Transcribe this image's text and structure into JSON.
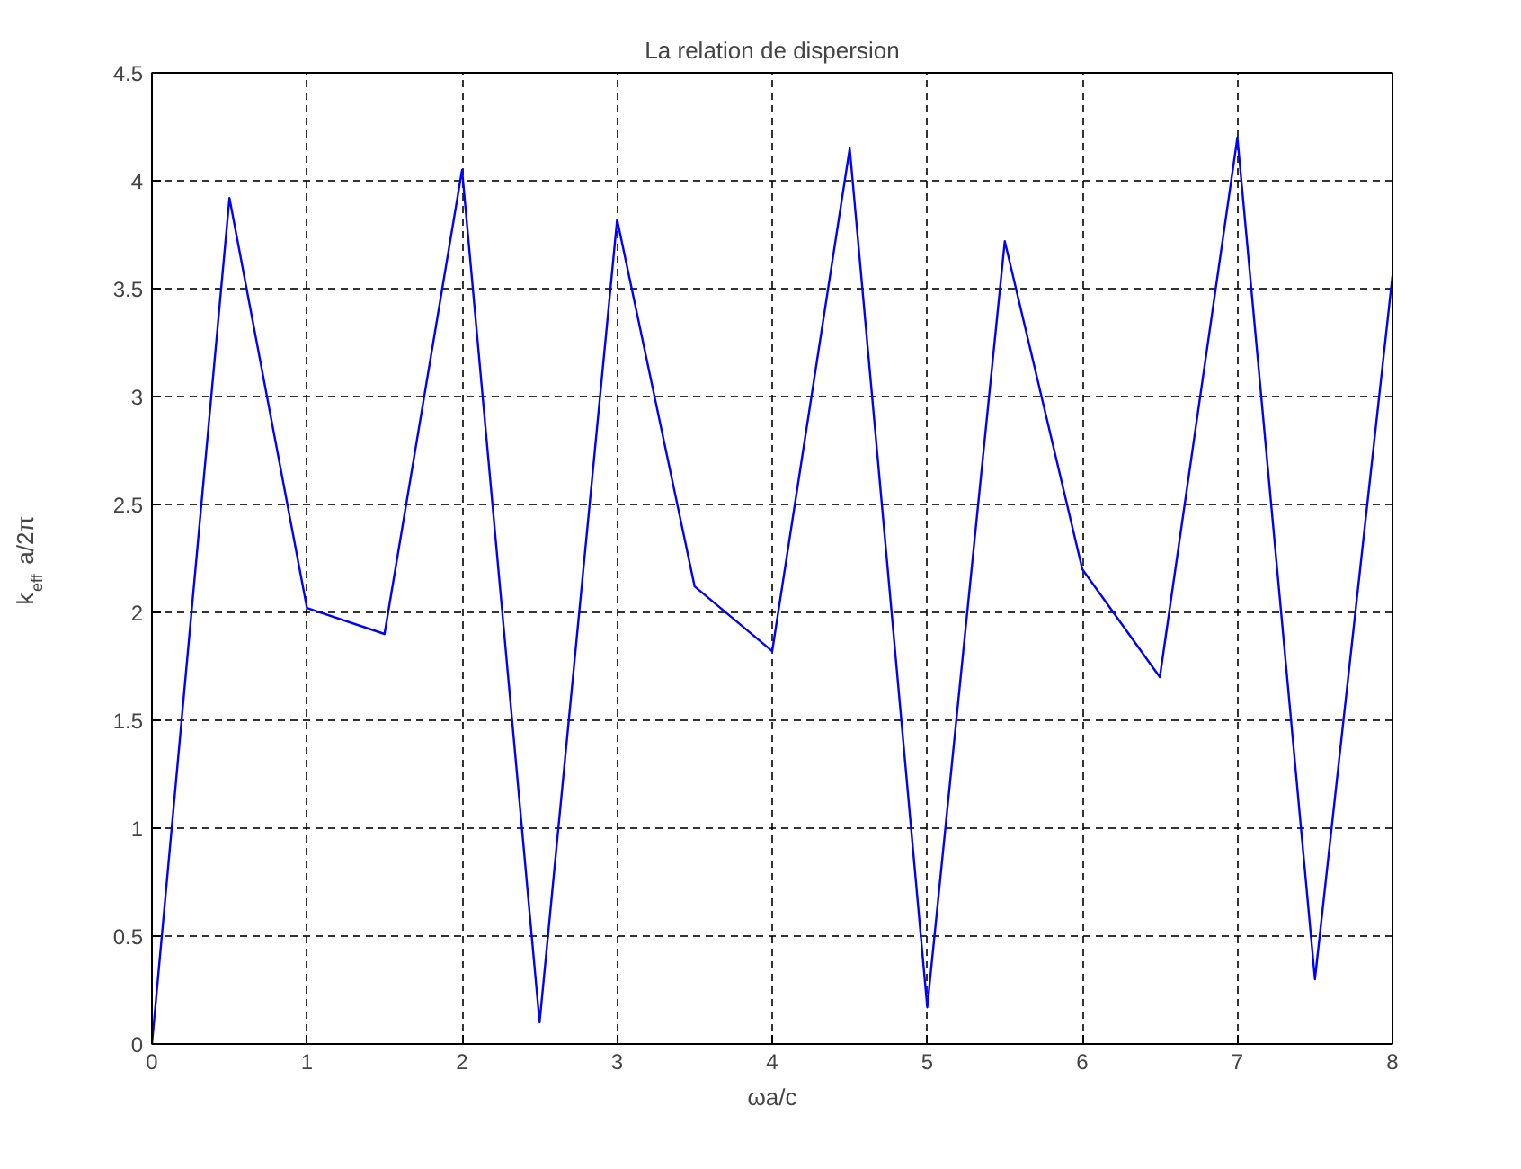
{
  "chart_data": {
    "type": "line",
    "title": "La relation de dispersion",
    "xlabel": "ωa/c",
    "ylabel": "k$_{eff}$a/2π",
    "x": [
      0,
      0.5,
      1,
      1.5,
      2,
      2.5,
      3,
      3.5,
      4,
      4.5,
      5,
      5.5,
      6,
      6.5,
      7,
      7.5,
      8
    ],
    "series": [
      {
        "color": "#0000ff",
        "values": [
          0,
          3.92,
          2.02,
          1.9,
          4.05,
          0.1,
          3.82,
          2.12,
          1.82,
          4.15,
          0.17,
          3.72,
          2.2,
          1.7,
          4.2,
          0.3,
          3.56
        ]
      }
    ],
    "xlim": [
      0,
      8
    ],
    "ylim": [
      0,
      4.5
    ],
    "xticks": [
      0,
      1,
      2,
      3,
      4,
      5,
      6,
      7,
      8
    ],
    "yticks": [
      0,
      0.5,
      1,
      1.5,
      2,
      2.5,
      3,
      3.5,
      4,
      4.5
    ],
    "grid": true,
    "line_style": "solid",
    "marker": "none"
  }
}
